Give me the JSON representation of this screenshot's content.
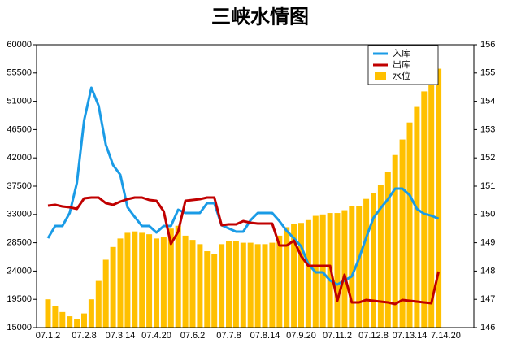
{
  "chart_data": {
    "type": "combo",
    "title": "三峡水情图",
    "categories": [
      "07.1.2",
      null,
      null,
      null,
      null,
      "07.2.8",
      null,
      null,
      null,
      null,
      "07.3.14",
      null,
      null,
      null,
      null,
      "07.4.20",
      null,
      null,
      null,
      null,
      "07.6.2",
      null,
      null,
      null,
      null,
      "07.7.8",
      null,
      null,
      null,
      null,
      "07.8.14",
      null,
      null,
      null,
      null,
      "07.9.20",
      null,
      null,
      null,
      null,
      "07.11.2",
      null,
      null,
      null,
      null,
      "07.12.8",
      null,
      null,
      null,
      null,
      "07.13.14",
      null,
      null,
      null,
      null,
      "7.14.20"
    ],
    "series": [
      {
        "name": "入库",
        "type": "line",
        "color": "#1a9be6",
        "values": [
          29225,
          31160,
          31160,
          33230,
          38020,
          47980,
          53150,
          50300,
          44100,
          40860,
          39310,
          34140,
          32590,
          31160,
          31160,
          30130,
          31160,
          31160,
          33750,
          33230,
          33230,
          33230,
          34790,
          34790,
          31290,
          30780,
          30260,
          30260,
          32070,
          33230,
          33230,
          33230,
          31940,
          30390,
          29220,
          27930,
          25090,
          23790,
          23790,
          22500,
          21850,
          22500,
          23150,
          25990,
          29350,
          32460,
          34010,
          35430,
          37110,
          37110,
          36080,
          33880,
          33100,
          32800,
          32330,
          null
        ]
      },
      {
        "name": "出库",
        "type": "line",
        "color": "#c00000",
        "values": [
          34400,
          34530,
          34270,
          34140,
          33880,
          35560,
          35690,
          35690,
          34790,
          34530,
          35040,
          35430,
          35690,
          35690,
          35300,
          35170,
          33490,
          28320,
          30260,
          35170,
          35300,
          35430,
          35690,
          35690,
          31290,
          31420,
          31420,
          31940,
          31680,
          31550,
          31550,
          31550,
          28060,
          28060,
          28840,
          26380,
          24830,
          24830,
          24830,
          24830,
          19270,
          23410,
          19010,
          19010,
          19400,
          19270,
          19140,
          19010,
          18750,
          19400,
          19270,
          19140,
          19010,
          18880,
          23920,
          null
        ]
      },
      {
        "name": "水位",
        "type": "bar",
        "axis": "y2",
        "color": "#ffc000",
        "values": [
          147.0,
          146.75,
          146.55,
          146.4,
          146.3,
          146.5,
          147.0,
          147.65,
          148.4,
          148.85,
          149.15,
          149.35,
          149.4,
          149.35,
          149.3,
          149.15,
          149.2,
          149.5,
          149.6,
          149.25,
          149.1,
          148.95,
          148.7,
          148.6,
          148.95,
          149.05,
          149.05,
          149.0,
          149.0,
          148.95,
          148.95,
          149.0,
          149.25,
          149.55,
          149.65,
          149.7,
          149.8,
          149.95,
          150.0,
          150.05,
          150.05,
          150.15,
          150.3,
          150.3,
          150.55,
          150.75,
          151.05,
          151.5,
          152.1,
          152.65,
          153.25,
          153.8,
          154.35,
          154.9,
          155.15,
          null
        ]
      }
    ],
    "ylim": [
      15000,
      60000
    ],
    "yticks": [
      15000,
      19500,
      24000,
      28500,
      33000,
      37500,
      42000,
      46500,
      51000,
      55500,
      60000
    ],
    "y2lim": [
      146,
      156
    ],
    "y2ticks": [
      146,
      147,
      148,
      149,
      150,
      151,
      152,
      153,
      154,
      155,
      156
    ],
    "legend": "upper right",
    "grid": false
  }
}
